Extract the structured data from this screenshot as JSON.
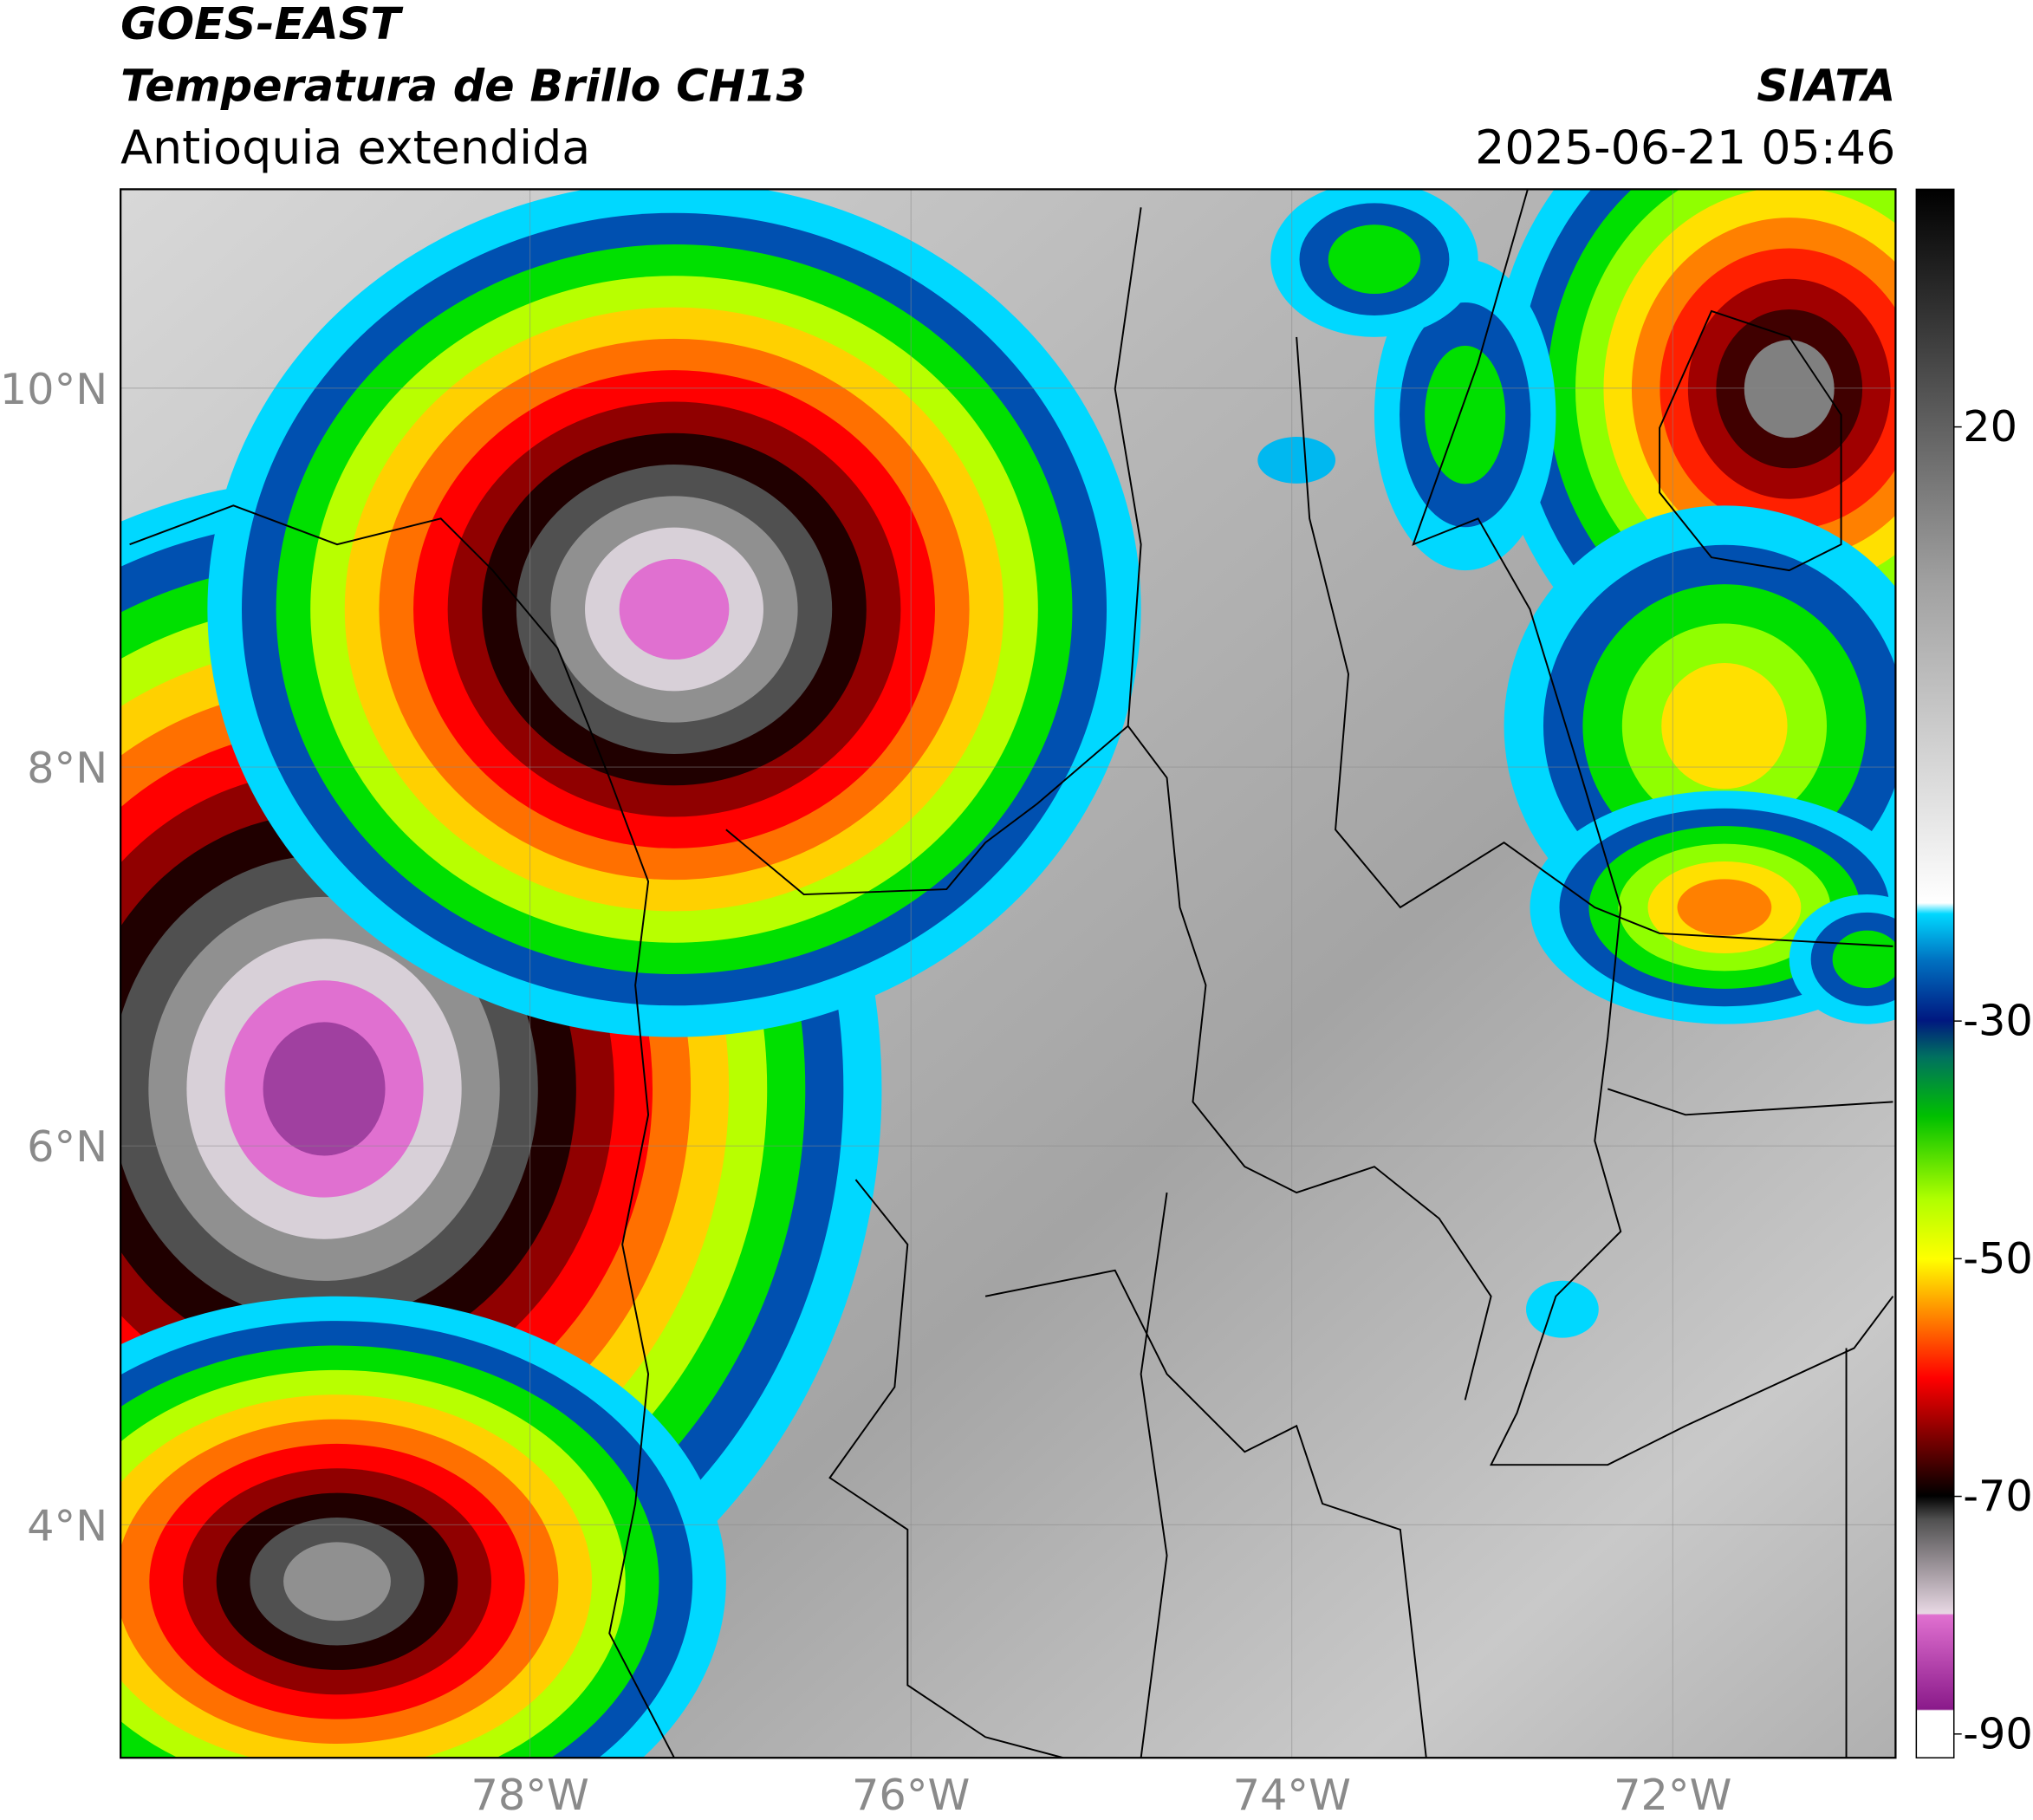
{
  "chart_data": {
    "type": "map",
    "title": "GOES-EAST",
    "subtitle": "Temperatura de Brillo CH13",
    "region": "Antioquia extendida",
    "source": "SIATA",
    "datetime": "2025-06-21 05:46",
    "xlim": [
      -80.15,
      -70.83
    ],
    "ylim": [
      2.77,
      11.05
    ],
    "xticks": [
      {
        "value": -78,
        "label": "78°W"
      },
      {
        "value": -76,
        "label": "76°W"
      },
      {
        "value": -74,
        "label": "74°W"
      },
      {
        "value": -72,
        "label": "72°W"
      }
    ],
    "yticks": [
      {
        "value": 4,
        "label": "4°N"
      },
      {
        "value": 6,
        "label": "6°N"
      },
      {
        "value": 8,
        "label": "8°N"
      },
      {
        "value": 10,
        "label": "10°N"
      }
    ],
    "grid": true,
    "colorbar": {
      "clim": [
        -92,
        40
      ],
      "ticks": [
        -90,
        -70,
        -50,
        -30,
        20
      ]
    }
  }
}
